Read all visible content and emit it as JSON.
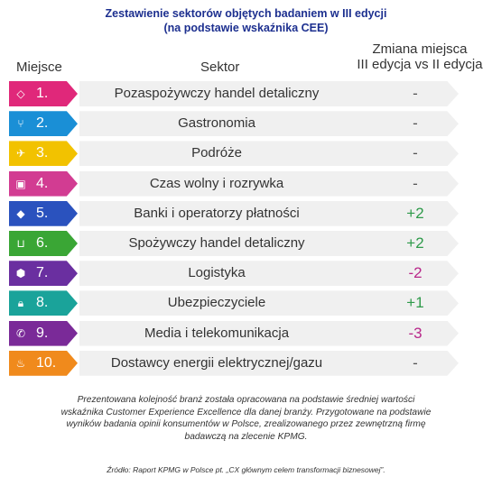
{
  "title": {
    "line1": "Zestawienie sektorów objętych badaniem w III edycji",
    "line2": "(na podstawie wskaźnika CEE)"
  },
  "headers": {
    "place": "Miejsce",
    "sector": "Sektor",
    "change_line1": "Zmiana miejsca",
    "change_line2": "III edycja vs II edycja"
  },
  "rows": [
    {
      "rank": "1.",
      "sector": "Pozaspożywczy handel detaliczny",
      "change": "-",
      "icon": "tag-icon",
      "glyph": "◇",
      "color": "#e0287a",
      "change_color": "#555555"
    },
    {
      "rank": "2.",
      "sector": "Gastronomia",
      "change": "-",
      "icon": "cutlery-icon",
      "glyph": "⑂",
      "color": "#1a8fd6",
      "change_color": "#555555"
    },
    {
      "rank": "3.",
      "sector": "Podróże",
      "change": "-",
      "icon": "plane-icon",
      "glyph": "✈",
      "color": "#f2c200",
      "change_color": "#555555"
    },
    {
      "rank": "4.",
      "sector": "Czas wolny i rozrywka",
      "change": "-",
      "icon": "ticket-icon",
      "glyph": "▣",
      "color": "#d23c92",
      "change_color": "#555555"
    },
    {
      "rank": "5.",
      "sector": "Banki i operatorzy płatności",
      "change": "+2",
      "icon": "money-icon",
      "glyph": "◆",
      "color": "#2a52be",
      "change_color": "#2e9a4a"
    },
    {
      "rank": "6.",
      "sector": "Spożywczy handel detaliczny",
      "change": "+2",
      "icon": "basket-icon",
      "glyph": "⊔",
      "color": "#3aa635",
      "change_color": "#2e9a4a"
    },
    {
      "rank": "7.",
      "sector": "Logistyka",
      "change": "-2",
      "icon": "box-icon",
      "glyph": "⬢",
      "color": "#6a2fa0",
      "change_color": "#b8288a"
    },
    {
      "rank": "8.",
      "sector": "Ubezpieczyciele",
      "change": "+1",
      "icon": "lock-icon",
      "glyph": "🔒︎",
      "color": "#1aa39a",
      "change_color": "#2e9a4a"
    },
    {
      "rank": "9.",
      "sector": "Media i telekomunikacja",
      "change": "-3",
      "icon": "phone-icon",
      "glyph": "✆",
      "color": "#7a2a98",
      "change_color": "#b8288a"
    },
    {
      "rank": "10.",
      "sector": "Dostawcy energii elektrycznej/gazu",
      "change": "-",
      "icon": "flame-icon",
      "glyph": "♨",
      "color": "#f08a1c",
      "change_color": "#555555"
    }
  ],
  "note": {
    "line1": "Prezentowana kolejność branż została opracowana na podstawie średniej wartości",
    "line2": "wskaźnika Customer Experience Excellence dla danej branży. Przygotowane na podstawie",
    "line3": "wyników badania opinii konsumentów w Polsce, zrealizowanego przez zewnętrzną firmę",
    "line4": "badawczą na zlecenie KPMG."
  },
  "source": "Źródło: Raport KPMG w Polsce pt. „CX głównym celem transformacji biznesowej”."
}
